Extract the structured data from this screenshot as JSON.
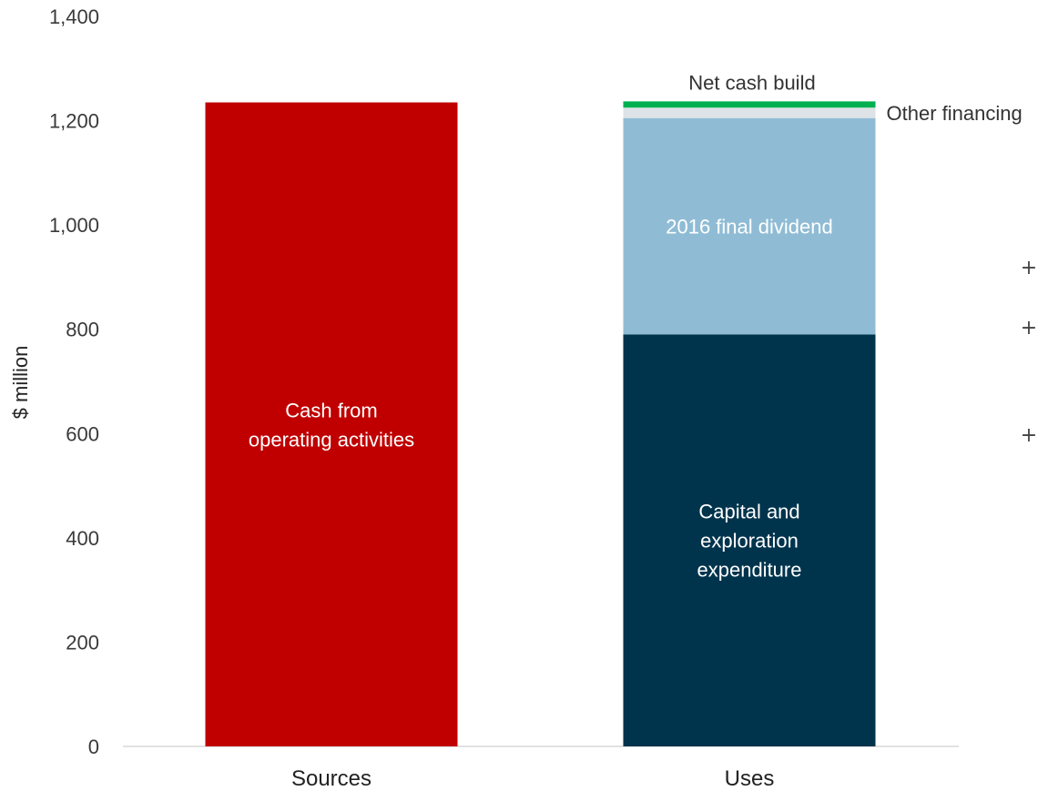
{
  "chart_data": {
    "type": "bar",
    "stacked": true,
    "categories": [
      "Sources",
      "Uses"
    ],
    "ylabel": "$ million",
    "ylim": [
      0,
      1400
    ],
    "yticks": [
      "0",
      "200",
      "400",
      "600",
      "800",
      "1,000",
      "1,200",
      "1,400"
    ],
    "grid": false,
    "series": [
      {
        "category": "Sources",
        "name": "Cash from operating activities",
        "label_lines": [
          "Cash from",
          "operating activities"
        ],
        "value": 1235,
        "color": "#c00000",
        "label_inside": true
      },
      {
        "category": "Uses",
        "name": "Capital and exploration expenditure",
        "label_lines": [
          "Capital and",
          "exploration",
          "expenditure"
        ],
        "value": 790,
        "color": "#00344d",
        "label_inside": true
      },
      {
        "category": "Uses",
        "name": "2016 final dividend",
        "label_lines": [
          "2016 final dividend"
        ],
        "value": 415,
        "color": "#8fbcd4",
        "label_inside": true
      },
      {
        "category": "Uses",
        "name": "Other financing",
        "label_lines": [
          "Other financing"
        ],
        "value": 20,
        "color": "#dde3e7",
        "label_inside": false,
        "label_side": "right"
      },
      {
        "category": "Uses",
        "name": "Net cash build",
        "label_lines": [
          "Net cash build"
        ],
        "value": 12,
        "color": "#00b050",
        "label_inside": false,
        "label_side": "top"
      }
    ],
    "plus_marks": [
      "+",
      "+",
      "+"
    ]
  }
}
